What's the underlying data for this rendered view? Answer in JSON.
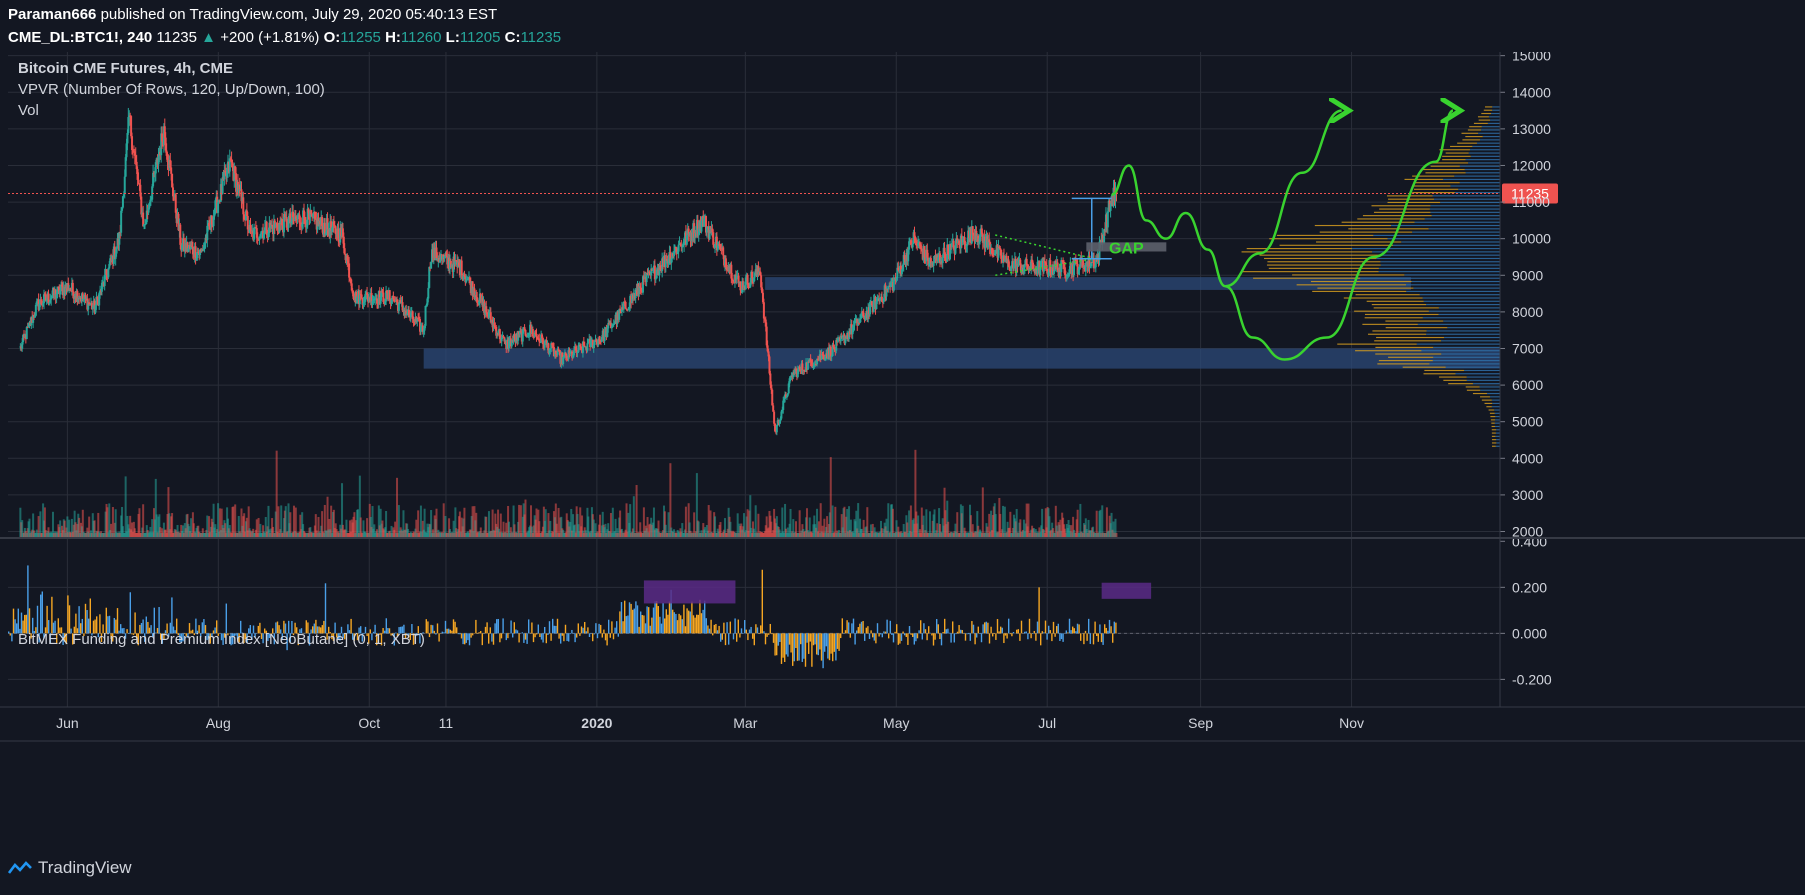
{
  "header": {
    "publisher": "Paraman666",
    "published_text": " published on TradingView.com, July 29, 2020 05:40:13 EST",
    "symbol": "CME_DL:BTC1!, 240",
    "last": "11235",
    "change": "+200 (+1.81%)",
    "open_label": "O:",
    "open": "11255",
    "high_label": "H:",
    "high": "11260",
    "low_label": "L:",
    "low": "11205",
    "close_label": "C:",
    "close": "11235"
  },
  "legend": {
    "title": "Bitcoin CME Futures, 4h, CME",
    "vpvr": "VPVR (Number Of Rows, 120, Up/Down, 100)",
    "vol": "Vol",
    "indicator": "BitMEX Funding and Premium Index [NeoButane] (0, 1, XBT)"
  },
  "footer": {
    "brand": "TradingView"
  },
  "colors": {
    "background": "#131722",
    "grid": "#2a2e39",
    "up": "#26a69a",
    "down": "#ef5350",
    "vpvr_up": "#2f6fa8",
    "vpvr_down": "#d49b1f",
    "zone": "#2c4a78",
    "projection": "#39d32f",
    "price_tag": "#ef5350",
    "funding": "#f5a623",
    "premium": "#4a9fe8",
    "purple": "#5b2a86"
  },
  "chart_data": [
    {
      "type": "candlestick",
      "title": "Bitcoin CME Futures, 4h, CME",
      "x_ticks": [
        "Jun",
        "Aug",
        "Oct",
        "11",
        "2020",
        "Mar",
        "May",
        "Jul",
        "Sep",
        "Nov"
      ],
      "y_ticks": [
        2000,
        3000,
        4000,
        5000,
        6000,
        7000,
        8000,
        9000,
        10000,
        11000,
        12000,
        13000,
        14000,
        15000
      ],
      "ylim": [
        1850,
        15100
      ],
      "last_price": 11235,
      "key_points": [
        {
          "date": "2019-05-13",
          "price": 7000
        },
        {
          "date": "2019-05-20",
          "price": 8200
        },
        {
          "date": "2019-06-01",
          "price": 8700
        },
        {
          "date": "2019-06-12",
          "price": 8100
        },
        {
          "date": "2019-06-22",
          "price": 10000
        },
        {
          "date": "2019-06-26",
          "price": 13300
        },
        {
          "date": "2019-07-02",
          "price": 10300
        },
        {
          "date": "2019-07-10",
          "price": 13000
        },
        {
          "date": "2019-07-17",
          "price": 9800
        },
        {
          "date": "2019-07-25",
          "price": 9600
        },
        {
          "date": "2019-08-06",
          "price": 12100
        },
        {
          "date": "2019-08-14",
          "price": 10100
        },
        {
          "date": "2019-08-22",
          "price": 10300
        },
        {
          "date": "2019-09-05",
          "price": 10600
        },
        {
          "date": "2019-09-20",
          "price": 10100
        },
        {
          "date": "2019-09-25",
          "price": 8400
        },
        {
          "date": "2019-10-10",
          "price": 8400
        },
        {
          "date": "2019-10-23",
          "price": 7500
        },
        {
          "date": "2019-10-26",
          "price": 9600
        },
        {
          "date": "2019-11-07",
          "price": 9200
        },
        {
          "date": "2019-11-25",
          "price": 7100
        },
        {
          "date": "2019-12-05",
          "price": 7500
        },
        {
          "date": "2019-12-18",
          "price": 6700
        },
        {
          "date": "2020-01-03",
          "price": 7300
        },
        {
          "date": "2020-01-20",
          "price": 8800
        },
        {
          "date": "2020-02-13",
          "price": 10500
        },
        {
          "date": "2020-02-28",
          "price": 8700
        },
        {
          "date": "2020-03-07",
          "price": 9100
        },
        {
          "date": "2020-03-13",
          "price": 4700
        },
        {
          "date": "2020-03-20",
          "price": 6300
        },
        {
          "date": "2020-04-06",
          "price": 7000
        },
        {
          "date": "2020-04-30",
          "price": 8800
        },
        {
          "date": "2020-05-08",
          "price": 10000
        },
        {
          "date": "2020-05-15",
          "price": 9300
        },
        {
          "date": "2020-06-02",
          "price": 10200
        },
        {
          "date": "2020-06-15",
          "price": 9300
        },
        {
          "date": "2020-06-26",
          "price": 9200
        },
        {
          "date": "2020-07-10",
          "price": 9200
        },
        {
          "date": "2020-07-21",
          "price": 9400
        },
        {
          "date": "2020-07-27",
          "price": 11100
        },
        {
          "date": "2020-07-29",
          "price": 11235
        }
      ],
      "annotations": [
        {
          "type": "zone",
          "price_from": 8600,
          "price_to": 8950,
          "date_from": "2020-03-09",
          "date_to": "2020-11-25"
        },
        {
          "type": "zone",
          "price_from": 6450,
          "price_to": 7000,
          "date_from": "2019-10-23",
          "date_to": "2020-12-31"
        },
        {
          "type": "label",
          "text": "GAP",
          "price": 9750
        },
        {
          "type": "projection",
          "description": "green path"
        }
      ]
    },
    {
      "type": "bar",
      "title": "Vol",
      "description": "volume histogram on the price pane"
    },
    {
      "type": "histogram",
      "title": "BitMEX Funding and Premium Index [NeoButane] (0, 1, XBT)",
      "y_ticks": [
        0.4,
        0.2,
        0.0,
        -0.2
      ],
      "ylim": [
        -0.32,
        0.41
      ],
      "series": [
        {
          "name": "funding",
          "color": "#f5a623"
        },
        {
          "name": "premium",
          "color": "#4a9fe8"
        }
      ]
    }
  ]
}
